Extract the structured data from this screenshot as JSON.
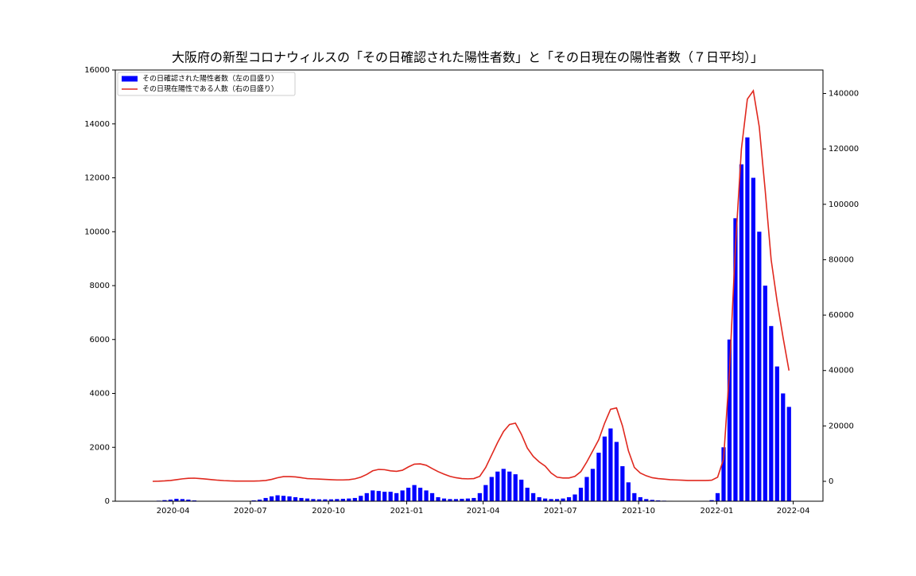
{
  "chart_data": {
    "type": "bar-line",
    "title": "大阪府の新型コロナウィルスの「その日確認された陽性者数」と「その日現在の陽性者数（７日平均）」",
    "legend": "upper left",
    "x": [
      "2020-03-01",
      "2020-03-08",
      "2020-03-15",
      "2020-03-22",
      "2020-03-29",
      "2020-04-05",
      "2020-04-12",
      "2020-04-19",
      "2020-04-26",
      "2020-05-03",
      "2020-05-10",
      "2020-05-17",
      "2020-05-24",
      "2020-05-31",
      "2020-06-07",
      "2020-06-14",
      "2020-06-21",
      "2020-06-28",
      "2020-07-05",
      "2020-07-12",
      "2020-07-19",
      "2020-07-26",
      "2020-08-02",
      "2020-08-09",
      "2020-08-16",
      "2020-08-23",
      "2020-08-30",
      "2020-09-06",
      "2020-09-13",
      "2020-09-20",
      "2020-09-27",
      "2020-10-04",
      "2020-10-11",
      "2020-10-18",
      "2020-10-25",
      "2020-11-01",
      "2020-11-08",
      "2020-11-15",
      "2020-11-22",
      "2020-11-29",
      "2020-12-06",
      "2020-12-13",
      "2020-12-20",
      "2020-12-27",
      "2021-01-03",
      "2021-01-10",
      "2021-01-17",
      "2021-01-24",
      "2021-01-31",
      "2021-02-07",
      "2021-02-14",
      "2021-02-21",
      "2021-02-28",
      "2021-03-07",
      "2021-03-14",
      "2021-03-21",
      "2021-03-28",
      "2021-04-04",
      "2021-04-11",
      "2021-04-18",
      "2021-04-25",
      "2021-05-02",
      "2021-05-09",
      "2021-05-16",
      "2021-05-23",
      "2021-05-30",
      "2021-06-06",
      "2021-06-13",
      "2021-06-20",
      "2021-06-27",
      "2021-07-04",
      "2021-07-11",
      "2021-07-18",
      "2021-07-25",
      "2021-08-01",
      "2021-08-08",
      "2021-08-15",
      "2021-08-22",
      "2021-08-29",
      "2021-09-05",
      "2021-09-12",
      "2021-09-19",
      "2021-09-26",
      "2021-10-03",
      "2021-10-10",
      "2021-10-17",
      "2021-10-24",
      "2021-10-31",
      "2021-11-07",
      "2021-11-14",
      "2021-11-21",
      "2021-11-28",
      "2021-12-05",
      "2021-12-12",
      "2021-12-19",
      "2021-12-26",
      "2022-01-02",
      "2022-01-09",
      "2022-01-16",
      "2022-01-23",
      "2022-01-30",
      "2022-02-06",
      "2022-02-13",
      "2022-02-20",
      "2022-02-27",
      "2022-03-06",
      "2022-03-13",
      "2022-03-20",
      "2022-03-27"
    ],
    "series": [
      {
        "name": "その日確認された陽性者数（左の目盛り）",
        "color": "#0000ff",
        "kind": "bar",
        "values": [
          5,
          10,
          20,
          40,
          60,
          90,
          80,
          60,
          30,
          10,
          5,
          2,
          2,
          2,
          2,
          2,
          5,
          10,
          30,
          60,
          120,
          180,
          220,
          200,
          180,
          150,
          120,
          100,
          80,
          70,
          70,
          70,
          80,
          90,
          100,
          120,
          200,
          300,
          400,
          380,
          350,
          350,
          300,
          400,
          500,
          600,
          500,
          400,
          300,
          150,
          100,
          80,
          80,
          90,
          100,
          120,
          300,
          600,
          900,
          1100,
          1200,
          1100,
          1000,
          800,
          500,
          300,
          150,
          100,
          80,
          80,
          100,
          150,
          250,
          500,
          900,
          1200,
          1800,
          2400,
          2700,
          2200,
          1300,
          700,
          300,
          150,
          80,
          50,
          30,
          20,
          15,
          10,
          10,
          10,
          10,
          10,
          15,
          40,
          300,
          2000,
          6000,
          10500,
          12500,
          13500,
          12000,
          10000,
          8000,
          6500,
          5000,
          4000,
          3500
        ]
      },
      {
        "name": "その日現在陽性である人数（右の目盛り）",
        "color": "#e0281e",
        "kind": "line",
        "axis": "y2",
        "values": [
          null,
          0,
          50,
          150,
          300,
          600,
          900,
          1100,
          1150,
          1000,
          800,
          600,
          400,
          250,
          150,
          100,
          80,
          80,
          100,
          150,
          300,
          700,
          1300,
          1700,
          1700,
          1600,
          1300,
          1000,
          900,
          800,
          700,
          600,
          500,
          500,
          600,
          900,
          1500,
          2500,
          3800,
          4300,
          4200,
          3800,
          3600,
          4000,
          5200,
          6200,
          6300,
          5800,
          4600,
          3500,
          2600,
          1800,
          1300,
          1000,
          900,
          1000,
          1800,
          5000,
          9500,
          14000,
          18000,
          20500,
          21000,
          17000,
          12000,
          9000,
          7000,
          5500,
          3000,
          1500,
          1200,
          1200,
          1800,
          3500,
          7000,
          11000,
          15000,
          21000,
          26000,
          26500,
          20000,
          11000,
          5000,
          3000,
          2000,
          1300,
          1000,
          800,
          600,
          500,
          400,
          300,
          300,
          300,
          300,
          400,
          1500,
          8000,
          40000,
          85000,
          120000,
          138000,
          141000,
          128000,
          105000,
          80000,
          65000,
          52000,
          40000
        ]
      }
    ],
    "xlim": [
      "2020-01-24",
      "2022-05-06"
    ],
    "xticks": [
      {
        "value": "2020-04-01",
        "label": "2020-04"
      },
      {
        "value": "2020-07-01",
        "label": "2020-07"
      },
      {
        "value": "2020-10-01",
        "label": "2020-10"
      },
      {
        "value": "2021-01-01",
        "label": "2021-01"
      },
      {
        "value": "2021-04-01",
        "label": "2021-04"
      },
      {
        "value": "2021-07-01",
        "label": "2021-07"
      },
      {
        "value": "2021-10-01",
        "label": "2021-10"
      },
      {
        "value": "2022-01-01",
        "label": "2022-01"
      },
      {
        "value": "2022-04-01",
        "label": "2022-04"
      }
    ],
    "ylim": [
      0,
      16000
    ],
    "yticks": [
      0,
      2000,
      4000,
      6000,
      8000,
      10000,
      12000,
      14000,
      16000
    ],
    "y2lim": [
      -7180,
      148480
    ],
    "y2ticks": [
      0,
      20000,
      40000,
      60000,
      80000,
      100000,
      120000,
      140000
    ]
  }
}
